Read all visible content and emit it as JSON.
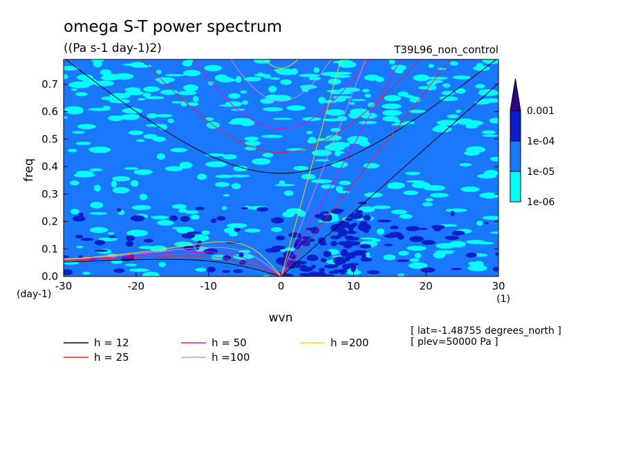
{
  "chart_data": {
    "type": "heatmap",
    "title": "omega S-T power spectrum",
    "subtitle": "((Pa s-1 day-1)2)",
    "run_label": "T39L96_non_control",
    "xlabel": "wvn",
    "ylabel": "freq",
    "x_unit": "(1)",
    "y_unit": "(day-1)",
    "xlim": [
      -30,
      30
    ],
    "ylim": [
      0,
      0.79
    ],
    "x_ticks": [
      "-30",
      "-20",
      "-10",
      "0",
      "10",
      "20",
      "30"
    ],
    "y_ticks": [
      "0.0",
      "0.1",
      "0.2",
      "0.3",
      "0.4",
      "0.5",
      "0.6",
      "0.7"
    ],
    "colorbar": {
      "labels": [
        "1e-06",
        "1e-05",
        "1e-04",
        "0.001"
      ],
      "colors": [
        "#00ffff",
        "#1a78ff",
        "#0a1fc8",
        "#00008b",
        "#330088"
      ]
    },
    "equivalent_depths": [
      {
        "label": "h = 12",
        "h": 12,
        "color": "#000000"
      },
      {
        "label": "h = 25",
        "h": 25,
        "color": "#ff1a1a"
      },
      {
        "label": "h = 50",
        "h": 50,
        "color": "#ff00aa"
      },
      {
        "label": "h =100",
        "h": 100,
        "color": "#dd88dd"
      },
      {
        "label": "h =200",
        "h": 200,
        "color": "#ffd700"
      }
    ],
    "info": [
      "[ lat=-1.48755 degrees_north ]",
      "[ plev=50000 Pa ]"
    ]
  }
}
